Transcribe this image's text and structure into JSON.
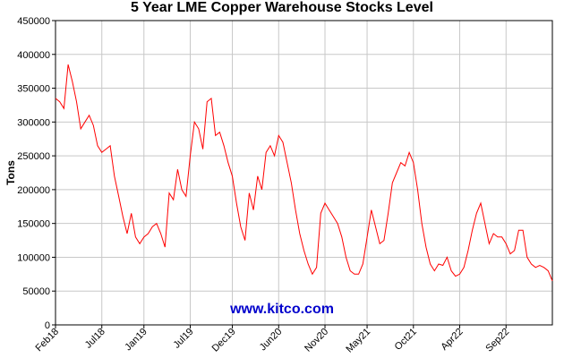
{
  "chart_data": {
    "type": "line",
    "title": "5 Year LME Copper Warehouse Stocks Level",
    "y_label": "Tons",
    "annotation": "www.kitco.com",
    "categories": [
      "Feb18",
      null,
      null,
      null,
      null,
      null,
      null,
      null,
      null,
      null,
      null,
      "Jul18",
      null,
      null,
      null,
      null,
      null,
      null,
      null,
      null,
      null,
      "Jan19",
      null,
      null,
      null,
      null,
      null,
      null,
      null,
      null,
      null,
      null,
      "Jul19",
      null,
      null,
      null,
      null,
      null,
      null,
      null,
      null,
      null,
      "Dec19",
      null,
      null,
      null,
      null,
      null,
      null,
      null,
      null,
      null,
      null,
      "Jun20",
      null,
      null,
      null,
      null,
      null,
      null,
      null,
      null,
      null,
      null,
      "Nov20",
      null,
      null,
      null,
      null,
      null,
      null,
      null,
      null,
      null,
      "May21",
      null,
      null,
      null,
      null,
      null,
      null,
      null,
      null,
      null,
      null,
      "Oct21",
      null,
      null,
      null,
      null,
      null,
      null,
      null,
      null,
      null,
      null,
      "Apr22",
      null,
      null,
      null,
      null,
      null,
      null,
      null,
      null,
      null,
      null,
      "Sep22",
      null,
      null,
      null,
      null,
      null,
      null,
      null,
      null,
      null,
      null,
      null
    ],
    "series": [
      {
        "name": "Stocks",
        "color": "#ff0000",
        "values": [
          335000,
          330000,
          320000,
          385000,
          360000,
          330000,
          290000,
          300000,
          310000,
          295000,
          265000,
          255000,
          260000,
          265000,
          220000,
          190000,
          160000,
          135000,
          165000,
          130000,
          120000,
          130000,
          135000,
          145000,
          150000,
          135000,
          115000,
          195000,
          185000,
          230000,
          200000,
          190000,
          250000,
          300000,
          290000,
          260000,
          330000,
          335000,
          280000,
          285000,
          265000,
          240000,
          220000,
          180000,
          145000,
          125000,
          195000,
          170000,
          220000,
          200000,
          255000,
          265000,
          250000,
          280000,
          270000,
          240000,
          210000,
          170000,
          135000,
          110000,
          90000,
          75000,
          85000,
          165000,
          180000,
          170000,
          160000,
          150000,
          130000,
          100000,
          80000,
          75000,
          75000,
          90000,
          130000,
          170000,
          145000,
          120000,
          125000,
          165000,
          210000,
          225000,
          240000,
          235000,
          255000,
          240000,
          200000,
          150000,
          115000,
          90000,
          80000,
          90000,
          88000,
          100000,
          80000,
          72000,
          75000,
          85000,
          110000,
          140000,
          165000,
          180000,
          150000,
          120000,
          135000,
          130000,
          130000,
          120000,
          105000,
          110000,
          140000,
          140000,
          100000,
          90000,
          85000,
          88000,
          85000,
          80000,
          65000
        ]
      }
    ],
    "ylim": [
      0,
      450000
    ],
    "yticks": [
      0,
      50000,
      100000,
      150000,
      200000,
      250000,
      300000,
      350000,
      400000,
      450000
    ],
    "grid": true
  }
}
